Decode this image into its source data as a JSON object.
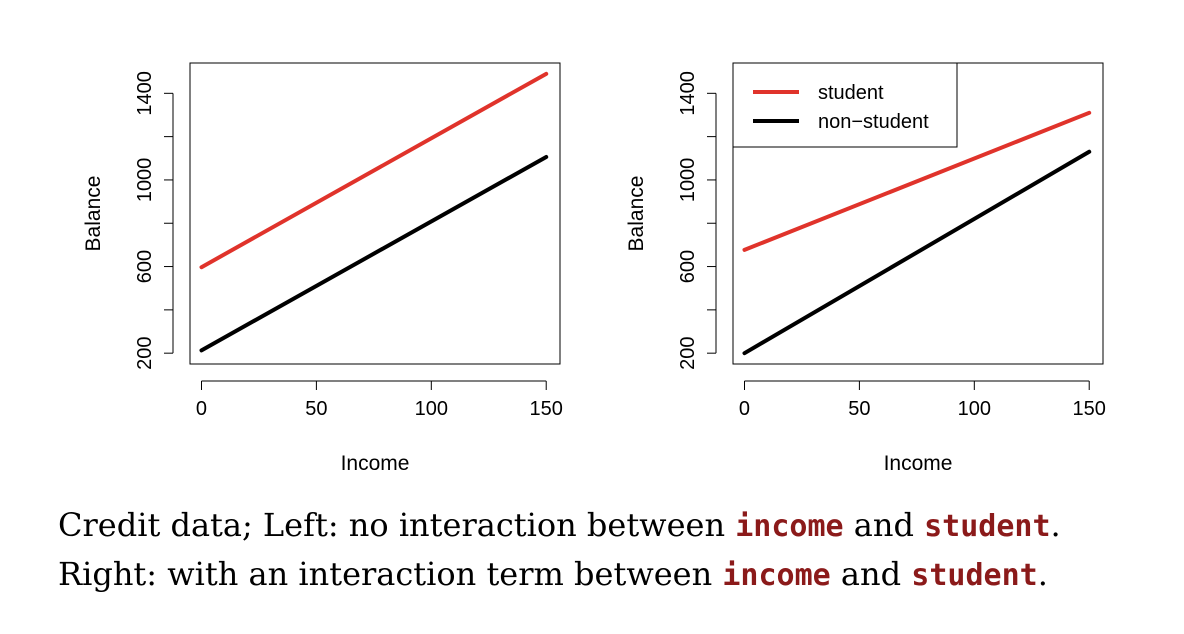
{
  "chart_data": [
    {
      "type": "line",
      "xlabel": "Income",
      "ylabel": "Balance",
      "xlim": [
        -5,
        156
      ],
      "ylim": [
        150,
        1540
      ],
      "x_ticks": [
        0,
        50,
        100,
        150
      ],
      "y_ticks": [
        200,
        400,
        600,
        800,
        1000,
        1200,
        1400
      ],
      "y_tick_labels": [
        200,
        600,
        1000,
        1400
      ],
      "grid": false,
      "series": [
        {
          "name": "student",
          "color": "#e0332b",
          "x": [
            0,
            150
          ],
          "y": [
            597,
            1490
          ]
        },
        {
          "name": "non-student",
          "color": "#000000",
          "x": [
            0,
            150
          ],
          "y": [
            213,
            1106
          ]
        }
      ]
    },
    {
      "type": "line",
      "xlabel": "Income",
      "ylabel": "Balance",
      "xlim": [
        -5,
        156
      ],
      "ylim": [
        150,
        1540
      ],
      "x_ticks": [
        0,
        50,
        100,
        150
      ],
      "y_ticks": [
        200,
        400,
        600,
        800,
        1000,
        1200,
        1400
      ],
      "y_tick_labels": [
        200,
        600,
        1000,
        1400
      ],
      "grid": false,
      "legend": {
        "position": "top-left",
        "entries": [
          "student",
          "non−student"
        ]
      },
      "series": [
        {
          "name": "student",
          "color": "#e0332b",
          "x": [
            0,
            150
          ],
          "y": [
            677,
            1310
          ]
        },
        {
          "name": "non−student",
          "color": "#000000",
          "x": [
            0,
            150
          ],
          "y": [
            200,
            1130
          ]
        }
      ]
    }
  ],
  "caption": {
    "line1": {
      "pre": "Credit data; Left: no interaction between ",
      "code1": "income",
      "mid": " and ",
      "code2": "student",
      "post": "."
    },
    "line2": {
      "pre": "Right: with an interaction term between ",
      "code1": "income",
      "mid": " and ",
      "code2": "student",
      "post": "."
    }
  }
}
